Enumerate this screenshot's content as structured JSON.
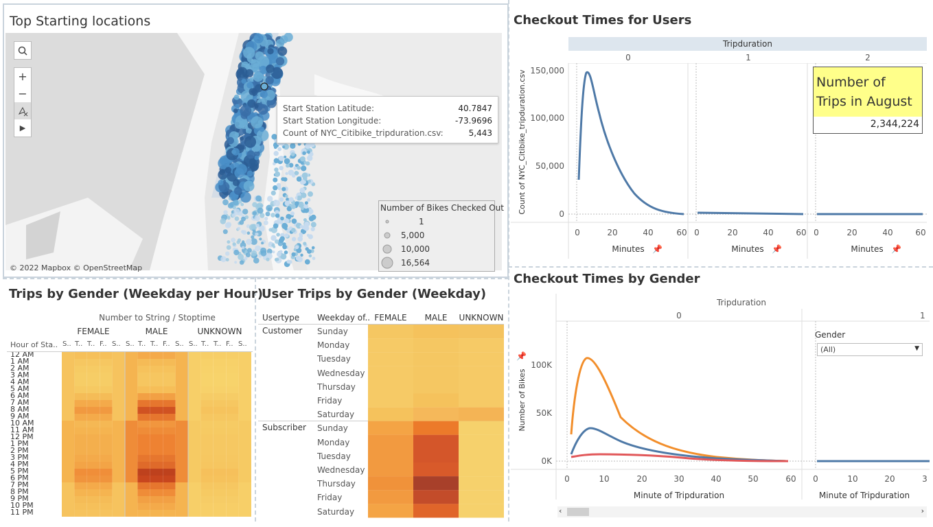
{
  "map_panel": {
    "title": "Top Starting locations",
    "attribution": "© 2022 Mapbox © OpenStreetMap",
    "tools": [
      "search-icon",
      "zoom-in-icon",
      "zoom-out-icon",
      "pin-reset-icon",
      "play-icon"
    ],
    "tooltip": {
      "rows": [
        {
          "label": "Start Station Latitude:",
          "value": "40.7847"
        },
        {
          "label": "Start Station Longitude:",
          "value": "-73.9696"
        },
        {
          "label": "Count of NYC_Citibike_tripduration.csv:",
          "value": "5,443"
        }
      ]
    },
    "legend": {
      "title": "Number of Bikes Checked Out",
      "items": [
        "1",
        "5,000",
        "10,000",
        "16,564"
      ]
    }
  },
  "checkout_users": {
    "title": "Checkout Times for Users",
    "header": "Tripduration",
    "panels": [
      "0",
      "1",
      "2"
    ],
    "ylabel": "Count of NYC_Citibike_tripduration.csv",
    "yticks": [
      "150,000",
      "100,000",
      "50,000",
      "0"
    ],
    "xticks": [
      "0",
      "20",
      "40",
      "60"
    ],
    "xlabel": "Minutes",
    "kpi": {
      "title": "Number of Trips in August",
      "value": "2,344,224"
    }
  },
  "checkout_gender": {
    "title": "Checkout Times by Gender",
    "header": "Tripduration",
    "panels": [
      "0",
      "1"
    ],
    "ylabel": "Number of Bikes",
    "yticks": [
      "100K",
      "50K",
      "0K"
    ],
    "xticks_left": [
      "0",
      "10",
      "20",
      "30",
      "40",
      "50",
      "60"
    ],
    "xticks_right": [
      "0",
      "10",
      "20",
      "3"
    ],
    "xlabel": "Minute of Tripduration",
    "filter": {
      "label": "Gender",
      "value": "(All)"
    },
    "colors": {
      "male": "#f28e2b",
      "female": "#4e79a7",
      "unknown": "#e15759"
    }
  },
  "trips_hour": {
    "title": "Trips by Gender (Weekday per Hour)",
    "header": "Number to String / Stoptime",
    "row_header": "Hour of Sta..",
    "genders": [
      "FEMALE",
      "MALE",
      "UNKNOWN"
    ],
    "day_abbr": [
      "S..",
      "T..",
      "T..",
      "F..",
      "S.."
    ],
    "hours": [
      "12 AM",
      "1 AM",
      "2 AM",
      "3 AM",
      "4 AM",
      "5 AM",
      "6 AM",
      "7 AM",
      "8 AM",
      "9 AM",
      "10 AM",
      "11 AM",
      "12 PM",
      "1 PM",
      "2 PM",
      "3 PM",
      "4 PM",
      "5 PM",
      "6 PM",
      "7 PM",
      "8 PM",
      "9 PM",
      "10 PM",
      "11 PM"
    ]
  },
  "user_trips": {
    "title": "User Trips by Gender (Weekday)",
    "col_usertype": "Usertype",
    "col_weekday": "Weekday of..",
    "genders": [
      "FEMALE",
      "MALE",
      "UNKNOWN"
    ],
    "groups": [
      {
        "name": "Customer",
        "days": [
          "Sunday",
          "Monday",
          "Tuesday",
          "Wednesday",
          "Thursday",
          "Friday",
          "Saturday"
        ]
      },
      {
        "name": "Subscriber",
        "days": [
          "Sunday",
          "Monday",
          "Tuesday",
          "Wednesday",
          "Thursday",
          "Friday",
          "Saturday"
        ]
      }
    ]
  }
}
